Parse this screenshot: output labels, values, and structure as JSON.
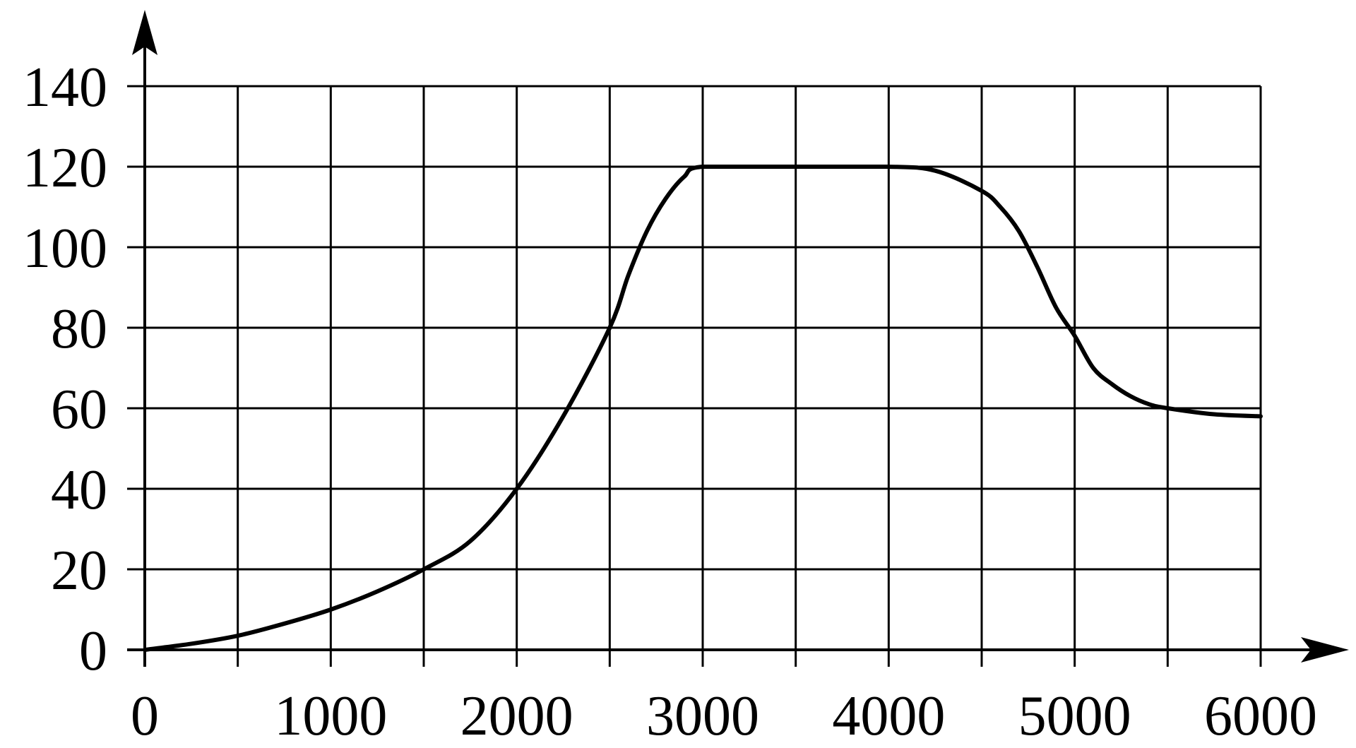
{
  "chart_data": {
    "type": "line",
    "title": "",
    "xlabel": "",
    "ylabel": "",
    "xlim": [
      0,
      6000
    ],
    "ylim": [
      0,
      140
    ],
    "x_grid_step": 500,
    "y_grid_step": 20,
    "grid": true,
    "x_tick_labels": [
      "0",
      "1000",
      "2000",
      "3000",
      "4000",
      "5000",
      "6000"
    ],
    "x_tick_values": [
      0,
      1000,
      2000,
      3000,
      4000,
      5000,
      6000
    ],
    "y_tick_labels": [
      "0",
      "20",
      "40",
      "60",
      "80",
      "100",
      "120",
      "140"
    ],
    "y_tick_values": [
      0,
      20,
      40,
      60,
      80,
      100,
      120,
      140
    ],
    "series": [
      {
        "x": [
          0,
          250,
          500,
          750,
          1000,
          1250,
          1500,
          1750,
          2000,
          2250,
          2500,
          2600,
          2700,
          2800,
          2900,
          3000,
          3500,
          4000,
          4250,
          4500,
          4600,
          4700,
          4800,
          4900,
          5000,
          5100,
          5200,
          5300,
          5400,
          5500,
          5750,
          6000
        ],
        "y": [
          0,
          1.5,
          3.5,
          6.5,
          10,
          14.5,
          20,
          27,
          40,
          58,
          80,
          93,
          104,
          112,
          117.5,
          120,
          120,
          120,
          119,
          114,
          110,
          104,
          95,
          85,
          78,
          70,
          66,
          63,
          61,
          60,
          58.5,
          58
        ]
      }
    ]
  }
}
